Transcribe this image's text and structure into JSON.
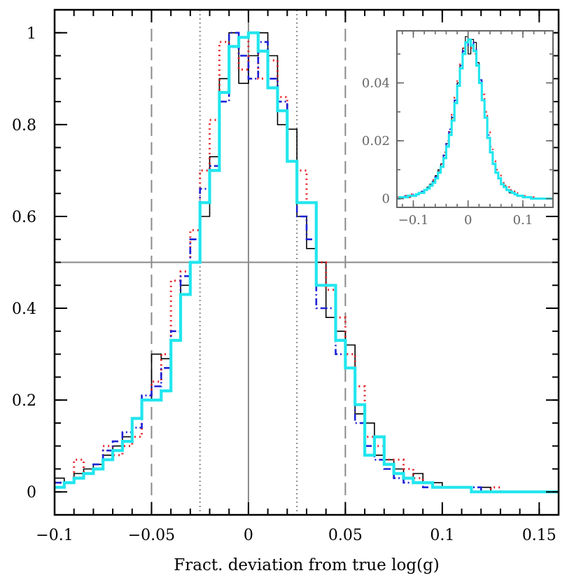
{
  "chart_data": [
    {
      "type": "line",
      "role": "main",
      "title": "",
      "xlabel": "Fract. deviation from true log(g)",
      "ylabel": "",
      "xlim": [
        -0.1,
        0.16
      ],
      "ylim": [
        -0.05,
        1.05
      ],
      "x_ticks": [
        -0.1,
        -0.05,
        0,
        0.05,
        0.1,
        0.15
      ],
      "x_tick_labels": [
        "−0.1",
        "−0.05",
        "0",
        "0.05",
        "0.1",
        "0.15"
      ],
      "y_ticks": [
        0,
        0.2,
        0.4,
        0.6,
        0.8,
        1
      ],
      "y_tick_labels": [
        "0",
        "0.2",
        "0.4",
        "0.6",
        "0.8",
        "1"
      ],
      "reference_lines": {
        "vertical_solid": [
          0
        ],
        "vertical_dashed": [
          -0.05,
          0.05
        ],
        "vertical_dotted": [
          -0.025,
          0.025
        ],
        "horizontal_solid": [
          0.5
        ]
      },
      "step_width": 0.005,
      "x": [
        -0.1,
        -0.095,
        -0.09,
        -0.085,
        -0.08,
        -0.075,
        -0.07,
        -0.065,
        -0.06,
        -0.055,
        -0.05,
        -0.045,
        -0.04,
        -0.035,
        -0.03,
        -0.025,
        -0.02,
        -0.015,
        -0.01,
        -0.005,
        0,
        0.005,
        0.01,
        0.015,
        0.02,
        0.025,
        0.03,
        0.035,
        0.04,
        0.045,
        0.05,
        0.055,
        0.06,
        0.065,
        0.07,
        0.075,
        0.08,
        0.085,
        0.09,
        0.095,
        0.1,
        0.105,
        0.11,
        0.115,
        0.12,
        0.125,
        0.13,
        0.135,
        0.14,
        0.145,
        0.15,
        0.155
      ],
      "series": [
        {
          "name": "",
          "color": "#000000",
          "style": "solid-thin",
          "values": [
            0.03,
            0.02,
            0.04,
            0.05,
            0.06,
            0.08,
            0.1,
            0.12,
            0.16,
            0.2,
            0.3,
            0.29,
            0.33,
            0.45,
            0.5,
            0.6,
            0.73,
            0.9,
            1.0,
            0.89,
            0.95,
            1.0,
            0.95,
            0.8,
            0.79,
            0.6,
            0.53,
            0.5,
            0.38,
            0.35,
            0.32,
            0.17,
            0.15,
            0.08,
            0.07,
            0.05,
            0.03,
            0.04,
            0.02,
            0.02,
            0.01,
            0.01,
            0.01,
            0.0,
            0.01,
            0.0,
            0.0,
            0.0,
            0.0,
            0.0,
            0.0,
            0.0
          ]
        },
        {
          "name": "",
          "color": "#e8262a",
          "style": "dotted",
          "values": [
            0.02,
            0.02,
            0.07,
            0.04,
            0.05,
            0.1,
            0.08,
            0.1,
            0.12,
            0.2,
            0.24,
            0.3,
            0.46,
            0.48,
            0.57,
            0.7,
            0.81,
            0.98,
            0.97,
            0.92,
            1.0,
            0.9,
            0.94,
            0.86,
            0.72,
            0.7,
            0.63,
            0.5,
            0.44,
            0.38,
            0.3,
            0.23,
            0.12,
            0.1,
            0.07,
            0.07,
            0.05,
            0.03,
            0.02,
            0.01,
            0.01,
            0.01,
            0.01,
            0.0,
            0.0,
            0.01,
            0.0,
            0.0,
            0.0,
            0.0,
            0.0,
            0.0
          ]
        },
        {
          "name": "",
          "color": "#1c22d6",
          "style": "dash-dot",
          "values": [
            0.02,
            0.02,
            0.03,
            0.04,
            0.06,
            0.09,
            0.11,
            0.13,
            0.14,
            0.21,
            0.23,
            0.27,
            0.35,
            0.47,
            0.55,
            0.66,
            0.71,
            0.85,
            1.0,
            0.95,
            0.9,
            0.98,
            0.9,
            0.85,
            0.72,
            0.6,
            0.55,
            0.4,
            0.4,
            0.3,
            0.27,
            0.15,
            0.1,
            0.07,
            0.05,
            0.03,
            0.02,
            0.02,
            0.01,
            0.01,
            0.01,
            0.01,
            0.01,
            0.01,
            0.0,
            0.0,
            0.0,
            0.0,
            0.0,
            0.0,
            0.0,
            0.0
          ]
        },
        {
          "name": "",
          "color": "#22e6ee",
          "style": "solid-thick",
          "values": [
            0.01,
            0.02,
            0.03,
            0.04,
            0.05,
            0.07,
            0.09,
            0.11,
            0.16,
            0.2,
            0.2,
            0.22,
            0.33,
            0.43,
            0.5,
            0.63,
            0.7,
            0.87,
            0.97,
            0.99,
            1.0,
            0.96,
            0.88,
            0.83,
            0.72,
            0.63,
            0.63,
            0.45,
            0.45,
            0.33,
            0.27,
            0.19,
            0.08,
            0.12,
            0.06,
            0.04,
            0.03,
            0.02,
            0.02,
            0.01,
            0.01,
            0.01,
            0.01,
            0.0,
            0.0,
            0.0,
            0.0,
            0.0,
            0.0,
            0.0,
            0.0,
            0.0
          ]
        }
      ]
    },
    {
      "type": "line",
      "role": "inset",
      "title": "",
      "xlabel": "",
      "ylabel": "",
      "xlim": [
        -0.13,
        0.155
      ],
      "ylim": [
        -0.003,
        0.058
      ],
      "x_ticks": [
        -0.1,
        0,
        0.1
      ],
      "x_tick_labels": [
        "−0.1",
        "0",
        "0.1"
      ],
      "y_ticks": [
        0,
        0.02,
        0.04
      ],
      "y_tick_labels": [
        "0",
        "0.02",
        "0.04"
      ],
      "step_width": 0.005,
      "x": [
        -0.13,
        -0.125,
        -0.12,
        -0.115,
        -0.11,
        -0.105,
        -0.1,
        -0.095,
        -0.09,
        -0.085,
        -0.08,
        -0.075,
        -0.07,
        -0.065,
        -0.06,
        -0.055,
        -0.05,
        -0.045,
        -0.04,
        -0.035,
        -0.03,
        -0.025,
        -0.02,
        -0.015,
        -0.01,
        -0.005,
        0,
        0.005,
        0.01,
        0.015,
        0.02,
        0.025,
        0.03,
        0.035,
        0.04,
        0.045,
        0.05,
        0.055,
        0.06,
        0.065,
        0.07,
        0.075,
        0.08,
        0.085,
        0.09,
        0.095,
        0.1,
        0.105,
        0.11,
        0.115,
        0.12,
        0.125,
        0.13,
        0.135,
        0.14,
        0.145,
        0.15
      ],
      "series": [
        {
          "name": "",
          "color": "#000000",
          "style": "solid-thin",
          "values": [
            0.0,
            0.0005,
            0.0005,
            0.001,
            0.0005,
            0.001,
            0.001,
            0.0015,
            0.002,
            0.002,
            0.003,
            0.004,
            0.005,
            0.006,
            0.008,
            0.01,
            0.012,
            0.015,
            0.019,
            0.023,
            0.028,
            0.034,
            0.04,
            0.046,
            0.052,
            0.056,
            0.05,
            0.055,
            0.054,
            0.047,
            0.04,
            0.034,
            0.028,
            0.021,
            0.016,
            0.012,
            0.009,
            0.007,
            0.005,
            0.004,
            0.003,
            0.002,
            0.002,
            0.0015,
            0.001,
            0.001,
            0.0005,
            0.0005,
            0.0005,
            0.0,
            0.0,
            0.0,
            0.0,
            0.0,
            0.0,
            0.0,
            0.0
          ]
        },
        {
          "name": "",
          "color": "#e8262a",
          "style": "dotted",
          "values": [
            0.0005,
            0.0005,
            0.001,
            0.001,
            0.0005,
            0.0015,
            0.001,
            0.0015,
            0.002,
            0.0025,
            0.003,
            0.0035,
            0.005,
            0.0065,
            0.008,
            0.0095,
            0.012,
            0.016,
            0.02,
            0.024,
            0.029,
            0.035,
            0.041,
            0.047,
            0.052,
            0.053,
            0.054,
            0.052,
            0.05,
            0.046,
            0.041,
            0.036,
            0.03,
            0.023,
            0.018,
            0.013,
            0.01,
            0.008,
            0.006,
            0.0045,
            0.004,
            0.003,
            0.0025,
            0.002,
            0.0015,
            0.001,
            0.001,
            0.0005,
            0.0005,
            0.0005,
            0.0,
            0.0,
            0.0,
            0.0,
            0.0,
            0.0,
            0.0
          ]
        },
        {
          "name": "",
          "color": "#1c22d6",
          "style": "dash-dot",
          "values": [
            0.0,
            0.0005,
            0.0005,
            0.001,
            0.001,
            0.001,
            0.0015,
            0.0015,
            0.002,
            0.0025,
            0.003,
            0.0035,
            0.0045,
            0.006,
            0.0075,
            0.0095,
            0.012,
            0.015,
            0.019,
            0.024,
            0.029,
            0.034,
            0.04,
            0.046,
            0.051,
            0.054,
            0.053,
            0.054,
            0.052,
            0.047,
            0.041,
            0.034,
            0.028,
            0.022,
            0.016,
            0.012,
            0.009,
            0.007,
            0.005,
            0.004,
            0.003,
            0.0025,
            0.002,
            0.0015,
            0.001,
            0.001,
            0.0005,
            0.0005,
            0.0005,
            0.0,
            0.0,
            0.0,
            0.0,
            0.0,
            0.0,
            0.0,
            0.0
          ]
        },
        {
          "name": "",
          "color": "#22e6ee",
          "style": "solid-thick",
          "values": [
            0.0,
            0.0005,
            0.0005,
            0.0005,
            0.001,
            0.001,
            0.001,
            0.0015,
            0.002,
            0.002,
            0.003,
            0.0035,
            0.0045,
            0.0055,
            0.007,
            0.009,
            0.011,
            0.014,
            0.018,
            0.022,
            0.027,
            0.033,
            0.039,
            0.045,
            0.05,
            0.054,
            0.055,
            0.053,
            0.051,
            0.046,
            0.04,
            0.034,
            0.028,
            0.021,
            0.016,
            0.012,
            0.009,
            0.007,
            0.005,
            0.004,
            0.003,
            0.0025,
            0.002,
            0.0015,
            0.001,
            0.001,
            0.0005,
            0.0005,
            0.0005,
            0.0,
            0.0,
            0.0,
            0.0,
            0.0,
            0.0,
            0.0,
            0.0
          ]
        }
      ]
    }
  ]
}
